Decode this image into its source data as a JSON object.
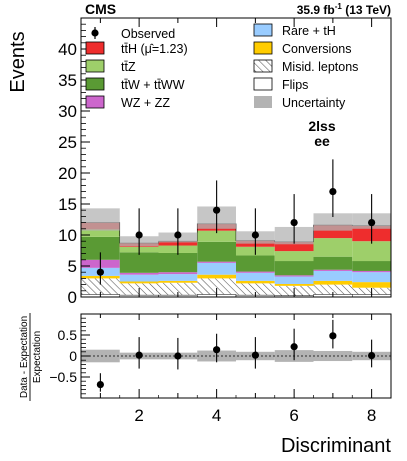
{
  "header": {
    "experiment": "CMS",
    "lumi_prefix": "35.9 fb",
    "lumi_exp": "-1",
    "lumi_suffix": " (13 TeV)"
  },
  "category_label": {
    "line1": "2lss",
    "line2": "ee"
  },
  "legend": {
    "observed": "Observed",
    "tth_pre": "tt̄H (",
    "tth_mu": "μ̂",
    "tth_post": "=1.23)",
    "ttz": "tt̄Z",
    "ttw": "tt̄W + tt̄WW",
    "wz": "WZ + ZZ",
    "rare": "Rare + tH",
    "conversions": "Conversions",
    "misid": "Misid. leptons",
    "flips": "Flips",
    "uncertainty": "Uncertainty"
  },
  "colors": {
    "tth": "#ee2d2d",
    "ttz": "#9ecf6a",
    "ttw": "#5a9a34",
    "wz": "#cc66cc",
    "rare": "#99ccff",
    "conversions": "#ffcc00",
    "flips": "#ffffff",
    "uncertainty": "#b3b3b3",
    "misid_hatch": "#555555"
  },
  "chart_data": [
    {
      "type": "bar",
      "stacked": true,
      "title": "",
      "xlabel": "Discriminant",
      "ylabel": "Events",
      "x_edges": [
        0.5,
        1.5,
        2.5,
        3.5,
        4.5,
        5.5,
        6.5,
        7.5,
        8.5
      ],
      "ylim": [
        0,
        45
      ],
      "yticks": [
        0,
        5,
        10,
        15,
        20,
        25,
        30,
        35,
        40
      ],
      "series": [
        {
          "key": "flips",
          "name": "Flips",
          "values": [
            0.4,
            0.3,
            0.3,
            0.4,
            0.3,
            0.2,
            0.4,
            0.4
          ]
        },
        {
          "key": "misid",
          "name": "Misid. leptons",
          "values": [
            2.6,
            1.9,
            2.0,
            2.6,
            1.9,
            1.6,
            1.6,
            1.1
          ]
        },
        {
          "key": "conversions",
          "name": "Conversions",
          "values": [
            0.4,
            0.3,
            0.3,
            0.6,
            0.4,
            0.3,
            0.6,
            0.9
          ]
        },
        {
          "key": "rare",
          "name": "Rare + tH",
          "values": [
            1.3,
            1.1,
            1.1,
            1.9,
            1.3,
            1.2,
            1.6,
            1.6
          ]
        },
        {
          "key": "wz",
          "name": "WZ + ZZ",
          "values": [
            1.3,
            0.3,
            0.3,
            0.2,
            0.2,
            0.2,
            0.2,
            0.2
          ]
        },
        {
          "key": "ttw",
          "name": "tt̄W + tt̄WW",
          "values": [
            3.7,
            3.3,
            3.1,
            3.2,
            2.6,
            2.3,
            2.1,
            1.6
          ]
        },
        {
          "key": "ttz",
          "name": "tt̄Z",
          "values": [
            1.2,
            0.9,
            1.2,
            1.8,
            1.4,
            1.6,
            3.0,
            3.2
          ]
        },
        {
          "key": "tth",
          "name": "tt̄H (μ̂=1.23)",
          "values": [
            1.1,
            0.6,
            0.7,
            1.1,
            1.0,
            1.5,
            2.1,
            2.5
          ]
        }
      ],
      "uncertainty_band": {
        "lower": [
          10.7,
          8.2,
          8.8,
          11.0,
          8.6,
          8.5,
          10.7,
          11.0
        ],
        "upper": [
          14.3,
          9.8,
          10.4,
          14.6,
          10.6,
          11.3,
          13.5,
          13.5
        ]
      },
      "observed": {
        "name": "Observed",
        "x": [
          1,
          2,
          3,
          4,
          5,
          6,
          7,
          8
        ],
        "y": [
          4,
          10,
          10,
          14,
          10,
          12,
          17,
          12
        ],
        "err_low": [
          2,
          3.2,
          3.2,
          3.7,
          3.2,
          3.4,
          4.1,
          3.4
        ],
        "err_high": [
          3.2,
          4.3,
          4.3,
          4.8,
          4.3,
          4.6,
          5.2,
          4.6
        ]
      }
    },
    {
      "type": "scatter",
      "title": "",
      "xlabel": "Discriminant",
      "ylabel": "Data - Expectation / Expectation",
      "ylabel_numerator": "Data - Expectation",
      "ylabel_denominator": "Expectation",
      "xlim": [
        0.5,
        8.5
      ],
      "xticks": [
        2,
        4,
        6,
        8
      ],
      "ylim": [
        -1,
        1
      ],
      "yticks": [
        -0.5,
        0,
        0.5
      ],
      "ytick_labels": [
        "−0.5",
        "0",
        "0.5"
      ],
      "reference_line": 0,
      "x": [
        1,
        2,
        3,
        4,
        5,
        6,
        7,
        8
      ],
      "y": [
        -0.68,
        0.02,
        0.0,
        0.15,
        0.02,
        0.22,
        0.48,
        0.01
      ],
      "err_low": [
        0.17,
        0.32,
        0.32,
        0.3,
        0.32,
        0.32,
        0.3,
        0.28
      ],
      "err_high": [
        0.27,
        0.43,
        0.43,
        0.38,
        0.43,
        0.43,
        0.38,
        0.38
      ],
      "band_half_width": [
        0.15,
        0.08,
        0.08,
        0.13,
        0.1,
        0.14,
        0.12,
        0.1
      ]
    }
  ]
}
